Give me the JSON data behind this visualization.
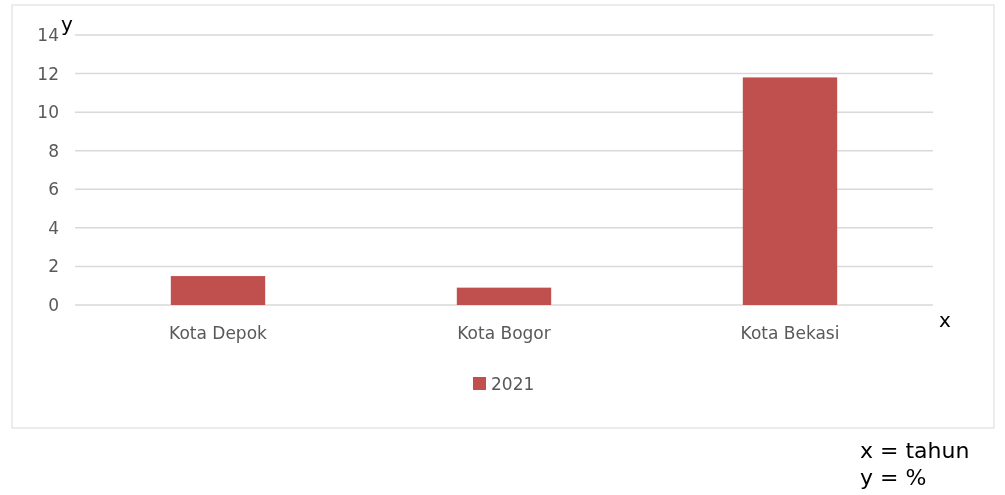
{
  "chart_data": {
    "type": "bar",
    "categories": [
      "Kota Depok",
      "Kota Bogor",
      "Kota Bekasi"
    ],
    "series": [
      {
        "name": "2021",
        "color": "#c0504d",
        "values": [
          1.5,
          0.9,
          11.8
        ]
      }
    ],
    "ylim": [
      0,
      14
    ],
    "yticks": [
      0,
      2,
      4,
      6,
      8,
      10,
      12,
      14
    ],
    "grid": "y",
    "legend": "bottom",
    "xlabel": "x",
    "ylabel": "y",
    "annotations": [
      "x = tahun",
      "y = %"
    ]
  }
}
